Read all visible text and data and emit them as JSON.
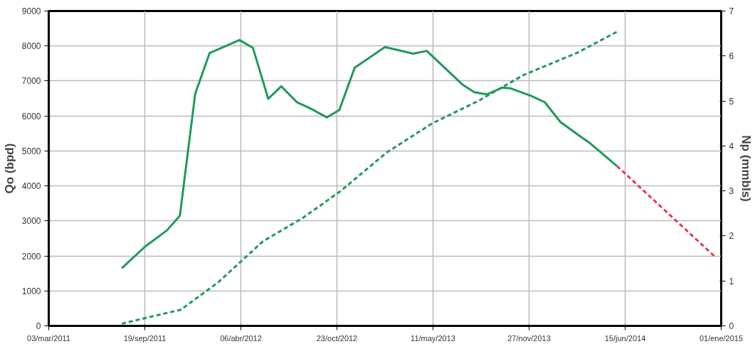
{
  "chart_data": {
    "type": "line",
    "ylabel": "Qo (bpd)",
    "y2label": "Np (mmbls)",
    "xlim": [
      "2011-03-03",
      "2015-01-01"
    ],
    "xticks": [
      {
        "value": "2011-03-03",
        "label": "03/mar/2011"
      },
      {
        "value": "2011-09-19",
        "label": "19/sep/2011"
      },
      {
        "value": "2012-04-06",
        "label": "06/abr/2012"
      },
      {
        "value": "2012-10-23",
        "label": "23/oct/2012"
      },
      {
        "value": "2013-05-11",
        "label": "11/may/2013"
      },
      {
        "value": "2013-11-27",
        "label": "27/nov/2013"
      },
      {
        "value": "2014-06-15",
        "label": "15/jun/2014"
      },
      {
        "value": "2015-01-01",
        "label": "01/ene/2015"
      }
    ],
    "ylim": [
      0,
      9000
    ],
    "yticks": [
      0,
      1000,
      2000,
      3000,
      4000,
      5000,
      6000,
      7000,
      8000,
      9000
    ],
    "y2lim": [
      0,
      7
    ],
    "y2ticks": [
      0,
      1,
      2,
      3,
      4,
      5,
      6,
      7
    ],
    "grid": true,
    "series": [
      {
        "color": "#1f9a5a",
        "line_style": "solid",
        "x": [
          "2011-08-02",
          "2011-09-19",
          "2011-11-04",
          "2011-12-01",
          "2012-01-02",
          "2012-02-01",
          "2012-04-03",
          "2012-05-01",
          "2012-06-02",
          "2012-06-29",
          "2012-08-01",
          "2012-08-28",
          "2012-10-02",
          "2012-10-28",
          "2012-11-29",
          "2013-01-31",
          "2013-03-31",
          "2013-04-28",
          "2013-07-12",
          "2013-08-05",
          "2013-09-01",
          "2013-10-02",
          "2013-10-20",
          "2013-12-02",
          "2013-12-30",
          "2014-01-31",
          "2014-03-07",
          "2014-04-03",
          "2014-05-29"
        ],
        "values": [
          1650,
          2260,
          2730,
          3150,
          6640,
          7800,
          8170,
          7950,
          6490,
          6850,
          6390,
          6220,
          5960,
          6170,
          7380,
          7970,
          7780,
          7860,
          6890,
          6680,
          6620,
          6810,
          6790,
          6570,
          6390,
          5830,
          5480,
          5220,
          4570
        ]
      },
      {
        "color": "#e8384f",
        "line_style": "dashed",
        "x": [
          "2014-05-29",
          "2014-12-18"
        ],
        "values": [
          4570,
          1990
        ]
      },
      {
        "color": "#1f9a5a",
        "line_style": "dashed",
        "axis": "y2",
        "x": [
          "2011-08-02",
          "2011-12-03",
          "2012-02-19",
          "2012-05-22",
          "2012-08-13",
          "2012-10-31",
          "2013-02-03",
          "2013-05-09",
          "2013-08-13",
          "2013-11-16",
          "2014-03-07",
          "2014-05-31"
        ],
        "values": [
          0.05,
          0.36,
          0.97,
          1.88,
          2.4,
          3.0,
          3.85,
          4.5,
          5.0,
          5.58,
          6.07,
          6.55
        ]
      }
    ]
  }
}
